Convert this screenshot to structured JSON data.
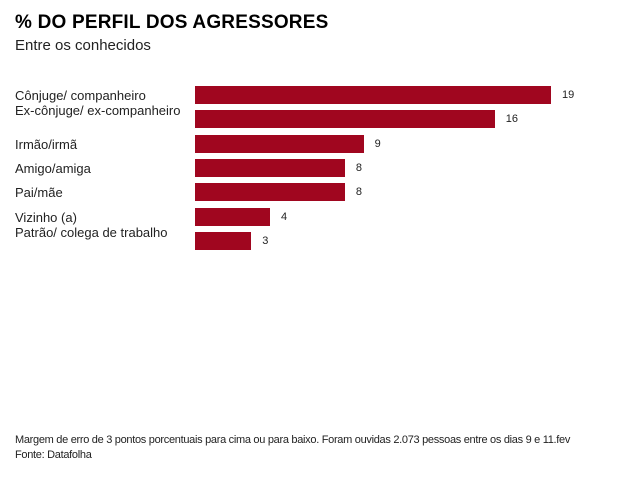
{
  "chart_data": {
    "type": "bar",
    "orientation": "horizontal",
    "title": "% DO PERFIL DOS AGRESSORES",
    "subtitle": "Entre os conhecidos",
    "categories": [
      "Cônjuge/ companheiro",
      "Ex-cônjuge/ ex-companheiro",
      "Irmão/irmã",
      "Amigo/amiga",
      "Pai/mãe",
      "Vizinho (a)",
      "Patrão/ colega de trabalho"
    ],
    "values": [
      19,
      16,
      9,
      8,
      8,
      4,
      3
    ],
    "xlabel": "",
    "ylabel": "",
    "xlim": [
      0,
      19
    ],
    "grid": false,
    "legend": "none",
    "bar_color": "#a0061f",
    "data_labels": true
  },
  "footer": {
    "note": "Margem de erro de 3 pontos porcentuais para cima ou para baixo. Foram ouvidas 2.073 pessoas entre os dias 9 e 11.fev",
    "source": "Fonte: Datafolha"
  }
}
